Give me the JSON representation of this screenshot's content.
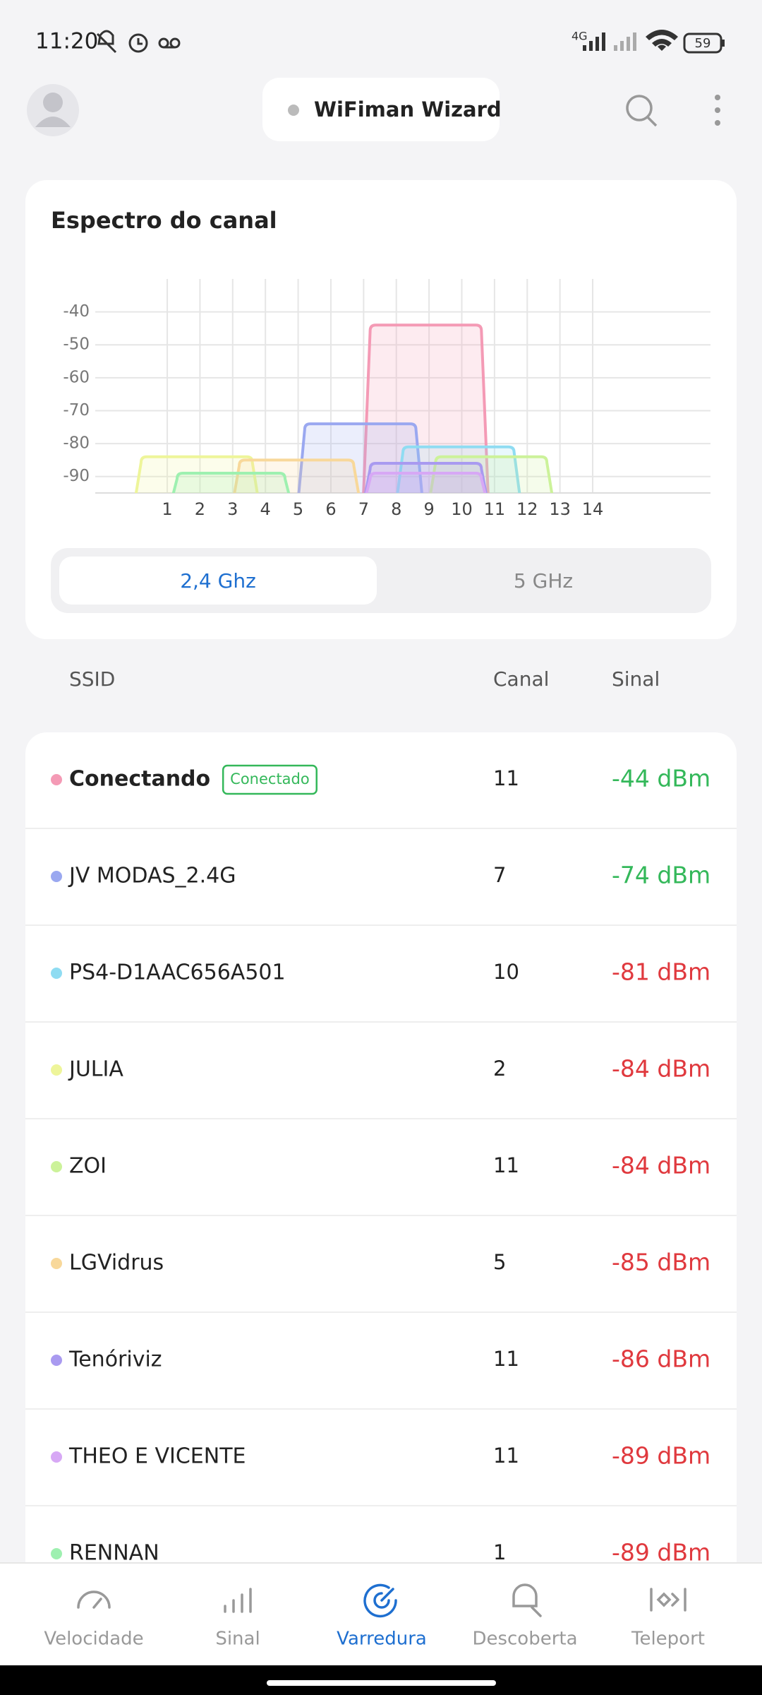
{
  "status_bar": {
    "time": "11:20",
    "network": "4G",
    "battery": "59"
  },
  "header": {
    "title": "WiFiman Wizard"
  },
  "chart_data": {
    "type": "spectrum",
    "title": "Espectro do canal",
    "xlim": [
      -1.2,
      17.6
    ],
    "xticks": [
      1,
      2,
      3,
      4,
      5,
      6,
      7,
      8,
      9,
      10,
      11,
      12,
      13,
      14
    ],
    "ylim": [
      -95,
      -30
    ],
    "yticks": [
      -40,
      -50,
      -60,
      -70,
      -80,
      -90
    ],
    "grid": true,
    "series": [
      {
        "name": "Conectando",
        "color": "#f49ab5",
        "span": [
          7.2,
          10.6
        ],
        "values": [
          -44
        ],
        "value_labels": [
          "-44 dBm"
        ],
        "channel": 11,
        "signal_color": "#34b85a",
        "badge": "Conectado"
      },
      {
        "name": "JV MODAS_2.4G",
        "color": "#9aa8f0",
        "span": [
          5.2,
          8.6
        ],
        "values": [
          -74
        ],
        "value_labels": [
          "-74 dBm"
        ],
        "channel": 7,
        "signal_color": "#34b85a"
      },
      {
        "name": "PS4-D1AAC656A501",
        "color": "#8fdcf2",
        "span": [
          8.2,
          11.6
        ],
        "values": [
          -81
        ],
        "value_labels": [
          "-81 dBm"
        ],
        "channel": 10,
        "signal_color": "#e0393e"
      },
      {
        "name": "JULIA",
        "color": "#eef59a",
        "span": [
          0.2,
          3.6
        ],
        "values": [
          -84
        ],
        "value_labels": [
          "-84 dBm"
        ],
        "channel": 2,
        "signal_color": "#e0393e"
      },
      {
        "name": "ZOI",
        "color": "#ccf29a",
        "span": [
          9.2,
          12.6
        ],
        "values": [
          -84
        ],
        "value_labels": [
          "-84 dBm"
        ],
        "channel": 11,
        "signal_color": "#e0393e"
      },
      {
        "name": "LGVidrus",
        "color": "#f8d89a",
        "span": [
          3.2,
          6.7
        ],
        "values": [
          -85
        ],
        "value_labels": [
          "-85 dBm"
        ],
        "channel": 5,
        "signal_color": "#e0393e"
      },
      {
        "name": "Tenóriviz",
        "color": "#a99af0",
        "span": [
          7.2,
          10.6
        ],
        "values": [
          -86
        ],
        "value_labels": [
          "-86 dBm"
        ],
        "channel": 11,
        "signal_color": "#e0393e"
      },
      {
        "name": "THEO E VICENTE",
        "color": "#d7a8f5",
        "span": [
          7.2,
          10.6
        ],
        "values": [
          -89
        ],
        "value_labels": [
          "-89 dBm"
        ],
        "channel": 11,
        "signal_color": "#e0393e"
      },
      {
        "name": "RENNAN",
        "color": "#9ef0b0",
        "span": [
          1.3,
          4.6
        ],
        "values": [
          -89
        ],
        "value_labels": [
          "-89 dBm"
        ],
        "channel": 1,
        "signal_color": "#e0393e"
      }
    ]
  },
  "band_tabs": {
    "options": [
      "2,4 Ghz",
      "5 GHz"
    ],
    "selected": 0
  },
  "table": {
    "columns": [
      "SSID",
      "Canal",
      "Sinal"
    ]
  },
  "nav": {
    "items": [
      "Velocidade",
      "Sinal",
      "Varredura",
      "Descoberta",
      "Teleport"
    ],
    "selected": 2
  }
}
